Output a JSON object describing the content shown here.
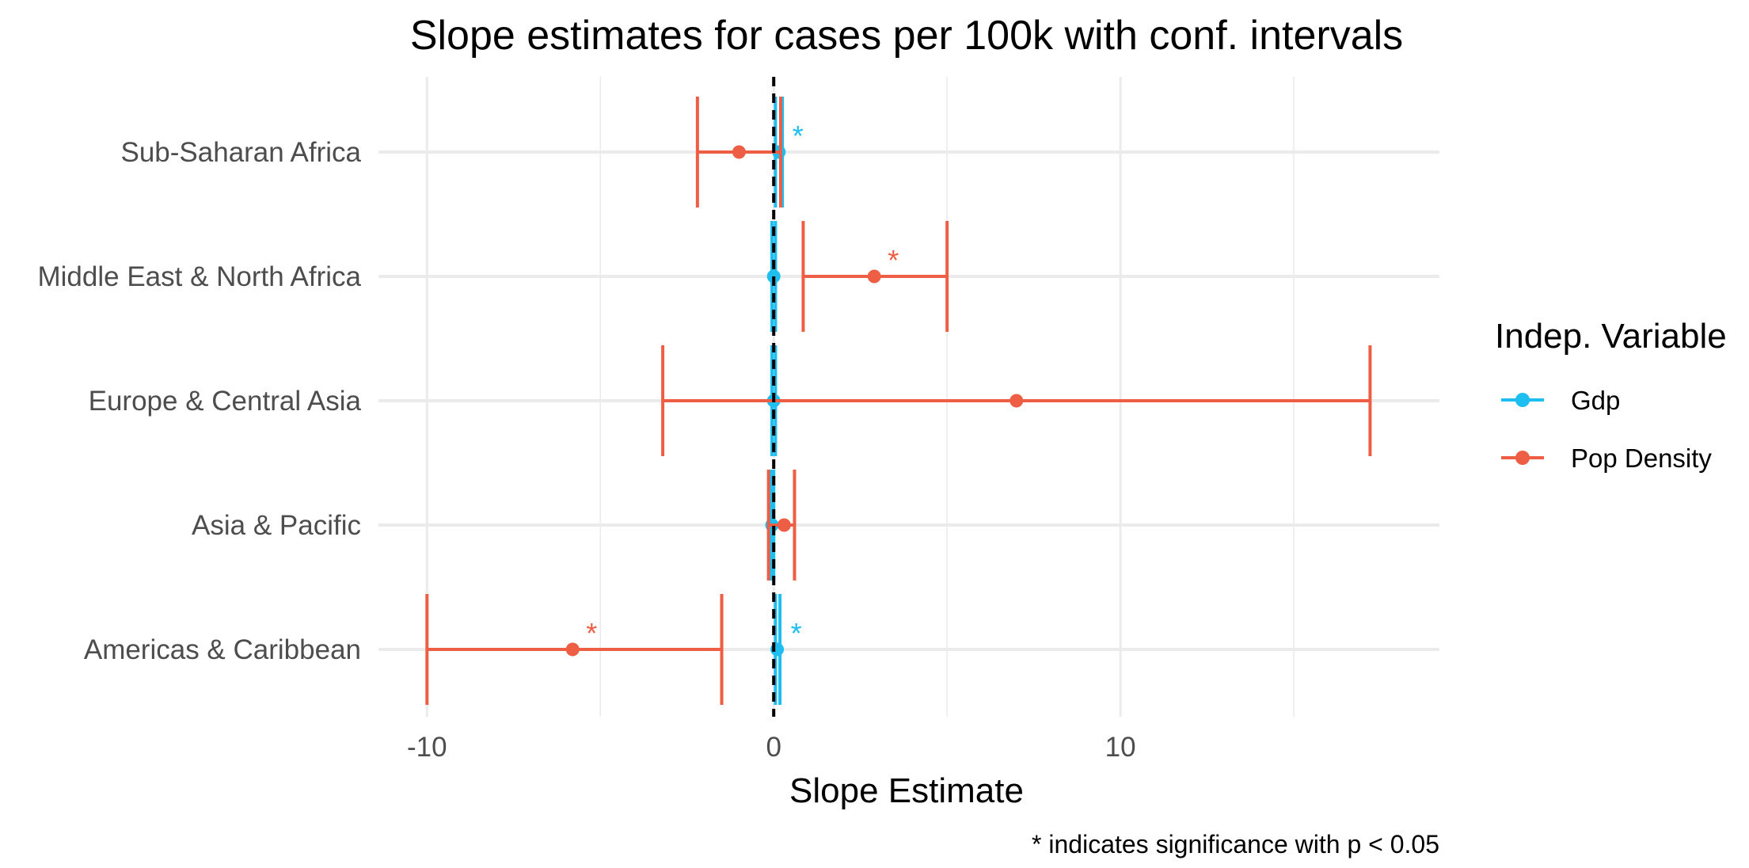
{
  "chart_data": {
    "type": "errorbar",
    "title": "Slope estimates for cases per 100k with conf. intervals",
    "xlabel": "Slope Estimate",
    "ylabel": "",
    "caption": "* indicates significance with p < 0.05",
    "xlim": [
      -11.4,
      19.2
    ],
    "x_ticks": [
      -10,
      0,
      10
    ],
    "x_tick_labels": [
      "-10",
      "0",
      "10"
    ],
    "reference_line": {
      "x": 0,
      "style": "dashed",
      "color": "#000000"
    },
    "grid": true,
    "categories": [
      "Sub-Saharan Africa",
      "Middle East & North Africa",
      "Europe & Central Asia",
      "Asia & Pacific",
      "Americas & Caribbean"
    ],
    "legend": {
      "title": "Indep. Variable",
      "placement": "right"
    },
    "significance_marker": "*",
    "series": [
      {
        "name": "Gdp",
        "color": "#1ebef0",
        "points": [
          {
            "category": "Sub-Saharan Africa",
            "estimate": 0.15,
            "low": 0.05,
            "high": 0.25,
            "significant": true
          },
          {
            "category": "Middle East & North Africa",
            "estimate": 0.0,
            "low": -0.05,
            "high": 0.05,
            "significant": false
          },
          {
            "category": "Europe & Central Asia",
            "estimate": 0.0,
            "low": -0.05,
            "high": 0.05,
            "significant": false
          },
          {
            "category": "Asia & Pacific",
            "estimate": -0.05,
            "low": -0.08,
            "high": 0.0,
            "significant": false
          },
          {
            "category": "Americas & Caribbean",
            "estimate": 0.1,
            "low": 0.05,
            "high": 0.18,
            "significant": true
          }
        ]
      },
      {
        "name": "Pop Density",
        "color": "#ee5e44",
        "points": [
          {
            "category": "Sub-Saharan Africa",
            "estimate": -1.0,
            "low": -2.2,
            "high": 0.2,
            "significant": false
          },
          {
            "category": "Middle East & North Africa",
            "estimate": 2.9,
            "low": 0.85,
            "high": 5.0,
            "significant": true
          },
          {
            "category": "Europe & Central Asia",
            "estimate": 7.0,
            "low": -3.2,
            "high": 17.2,
            "significant": false
          },
          {
            "category": "Asia & Pacific",
            "estimate": 0.3,
            "low": -0.15,
            "high": 0.6,
            "significant": false
          },
          {
            "category": "Americas & Caribbean",
            "estimate": -5.8,
            "low": -10.0,
            "high": -1.5,
            "significant": true
          }
        ]
      }
    ]
  }
}
